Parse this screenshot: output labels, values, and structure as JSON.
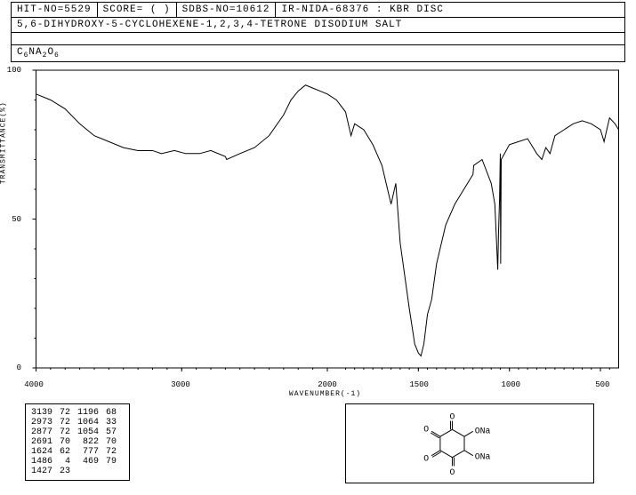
{
  "header": {
    "hit_no": "HIT-NO=5529",
    "score": "SCORE=  (  )",
    "sdbs": "SDBS-NO=10612",
    "ir": "IR-NIDA-68376 : KBR DISC"
  },
  "compound": "5,6-DIHYDROXY-5-CYCLOHEXENE-1,2,3,4-TETRONE DISODIUM SALT",
  "formula_html": "C<sub>6</sub>NA<sub>2</sub>O<sub>6</sub>",
  "chart": {
    "type": "line",
    "x_label": "WAVENUMBER(-1)",
    "y_label": "TRANSMITTANCE(%)",
    "x_orientation": "reversed",
    "xlim": [
      4000,
      400
    ],
    "ylim": [
      0,
      100
    ],
    "x_ticks": [
      4000,
      3000,
      2000,
      1500,
      1000,
      500
    ],
    "y_ticks": [
      0,
      50,
      100
    ],
    "frame_color": "#000000",
    "line_color": "#000000",
    "line_width": 1,
    "background_color": "#ffffff",
    "data": [
      [
        4000,
        92
      ],
      [
        3900,
        90
      ],
      [
        3800,
        87
      ],
      [
        3700,
        82
      ],
      [
        3600,
        78
      ],
      [
        3500,
        76
      ],
      [
        3400,
        74
      ],
      [
        3300,
        73
      ],
      [
        3200,
        73
      ],
      [
        3139,
        72
      ],
      [
        3050,
        73
      ],
      [
        2973,
        72
      ],
      [
        2877,
        72
      ],
      [
        2800,
        73
      ],
      [
        2700,
        71
      ],
      [
        2691,
        70
      ],
      [
        2600,
        72
      ],
      [
        2500,
        74
      ],
      [
        2400,
        78
      ],
      [
        2300,
        85
      ],
      [
        2250,
        90
      ],
      [
        2200,
        93
      ],
      [
        2150,
        95
      ],
      [
        2100,
        94
      ],
      [
        2050,
        93
      ],
      [
        2000,
        92
      ],
      [
        1950,
        90
      ],
      [
        1900,
        86
      ],
      [
        1870,
        78
      ],
      [
        1850,
        82
      ],
      [
        1800,
        80
      ],
      [
        1750,
        75
      ],
      [
        1700,
        68
      ],
      [
        1650,
        55
      ],
      [
        1624,
        62
      ],
      [
        1600,
        42
      ],
      [
        1550,
        20
      ],
      [
        1520,
        8
      ],
      [
        1500,
        5
      ],
      [
        1486,
        4
      ],
      [
        1470,
        8
      ],
      [
        1450,
        18
      ],
      [
        1427,
        23
      ],
      [
        1400,
        35
      ],
      [
        1350,
        48
      ],
      [
        1300,
        55
      ],
      [
        1250,
        60
      ],
      [
        1200,
        65
      ],
      [
        1196,
        68
      ],
      [
        1150,
        70
      ],
      [
        1100,
        62
      ],
      [
        1080,
        55
      ],
      [
        1064,
        33
      ],
      [
        1060,
        45
      ],
      [
        1054,
        57
      ],
      [
        1050,
        72
      ],
      [
        1048,
        35
      ],
      [
        1045,
        70
      ],
      [
        1000,
        75
      ],
      [
        950,
        76
      ],
      [
        900,
        77
      ],
      [
        850,
        72
      ],
      [
        822,
        70
      ],
      [
        800,
        74
      ],
      [
        777,
        72
      ],
      [
        750,
        78
      ],
      [
        700,
        80
      ],
      [
        650,
        82
      ],
      [
        600,
        83
      ],
      [
        550,
        82
      ],
      [
        500,
        80
      ],
      [
        480,
        76
      ],
      [
        469,
        79
      ],
      [
        450,
        84
      ],
      [
        420,
        82
      ],
      [
        400,
        80
      ]
    ]
  },
  "peaks": {
    "columns_left": [
      [
        3139,
        72
      ],
      [
        2973,
        72
      ],
      [
        2877,
        72
      ],
      [
        2691,
        70
      ],
      [
        1624,
        62
      ],
      [
        1486,
        4
      ],
      [
        1427,
        23
      ]
    ],
    "columns_right": [
      [
        1196,
        68
      ],
      [
        1064,
        33
      ],
      [
        1054,
        57
      ],
      [
        822,
        70
      ],
      [
        777,
        72
      ],
      [
        469,
        79
      ]
    ]
  },
  "structure": {
    "labels": {
      "o": "O",
      "ona": "ONa"
    },
    "font_size": 10,
    "bond_color": "#000000"
  }
}
